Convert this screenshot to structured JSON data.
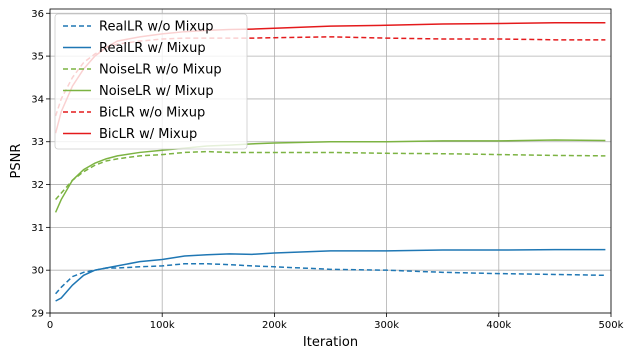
{
  "chart_data": {
    "type": "line",
    "title": "",
    "xlabel": "Iteration",
    "ylabel": "PSNR",
    "xlim": [
      0,
      500000
    ],
    "ylim": [
      29,
      36.1
    ],
    "grid": true,
    "legend_position": "top-left",
    "x_ticks": [
      0,
      100000,
      200000,
      300000,
      400000,
      500000
    ],
    "x_tick_labels": [
      "0",
      "100k",
      "200k",
      "300k",
      "400k",
      "500k"
    ],
    "y_ticks": [
      29,
      30,
      31,
      32,
      33,
      34,
      35,
      36
    ],
    "y_tick_labels": [
      "29",
      "30",
      "31",
      "32",
      "33",
      "34",
      "35",
      "36"
    ],
    "series": [
      {
        "name": "RealLR w/o Mixup",
        "color": "#1f77b4",
        "dash": "dashed",
        "x": [
          5000,
          10000,
          20000,
          30000,
          40000,
          50000,
          60000,
          80000,
          100000,
          120000,
          140000,
          160000,
          180000,
          200000,
          250000,
          300000,
          350000,
          400000,
          450000,
          495000
        ],
        "y": [
          29.45,
          29.6,
          29.85,
          29.95,
          30.0,
          30.05,
          30.05,
          30.08,
          30.1,
          30.15,
          30.15,
          30.13,
          30.1,
          30.08,
          30.02,
          30.0,
          29.95,
          29.92,
          29.9,
          29.88
        ]
      },
      {
        "name": "RealLR w/ Mixup",
        "color": "#1f77b4",
        "dash": "solid",
        "x": [
          5000,
          10000,
          20000,
          30000,
          40000,
          50000,
          60000,
          80000,
          100000,
          120000,
          140000,
          160000,
          180000,
          200000,
          250000,
          300000,
          350000,
          400000,
          450000,
          495000
        ],
        "y": [
          29.28,
          29.35,
          29.65,
          29.88,
          30.0,
          30.05,
          30.1,
          30.2,
          30.25,
          30.33,
          30.36,
          30.38,
          30.37,
          30.4,
          30.45,
          30.45,
          30.47,
          30.47,
          30.48,
          30.48
        ]
      },
      {
        "name": "NoiseLR w/o Mixup",
        "color": "#7cb342",
        "dash": "dashed",
        "x": [
          5000,
          10000,
          20000,
          30000,
          40000,
          50000,
          60000,
          80000,
          100000,
          120000,
          140000,
          160000,
          180000,
          200000,
          250000,
          300000,
          350000,
          400000,
          450000,
          495000
        ],
        "y": [
          31.65,
          31.8,
          32.1,
          32.3,
          32.45,
          32.55,
          32.6,
          32.67,
          32.7,
          32.75,
          32.77,
          32.75,
          32.75,
          32.75,
          32.75,
          32.73,
          32.72,
          32.7,
          32.68,
          32.67
        ]
      },
      {
        "name": "NoiseLR w/ Mixup",
        "color": "#7cb342",
        "dash": "solid",
        "x": [
          5000,
          10000,
          20000,
          30000,
          40000,
          50000,
          60000,
          80000,
          100000,
          120000,
          140000,
          160000,
          180000,
          200000,
          250000,
          300000,
          350000,
          400000,
          450000,
          495000
        ],
        "y": [
          31.35,
          31.65,
          32.1,
          32.35,
          32.5,
          32.6,
          32.67,
          32.75,
          32.8,
          32.85,
          32.9,
          32.92,
          32.95,
          32.97,
          33.0,
          33.0,
          33.02,
          33.02,
          33.04,
          33.03
        ]
      },
      {
        "name": "BicLR w/o Mixup",
        "color": "#e41a1c",
        "dash": "dashed",
        "x": [
          5000,
          10000,
          20000,
          30000,
          40000,
          50000,
          60000,
          80000,
          100000,
          120000,
          140000,
          160000,
          180000,
          200000,
          250000,
          300000,
          350000,
          400000,
          450000,
          495000
        ],
        "y": [
          33.6,
          34.0,
          34.5,
          34.85,
          35.05,
          35.2,
          35.28,
          35.35,
          35.4,
          35.42,
          35.42,
          35.42,
          35.42,
          35.43,
          35.45,
          35.42,
          35.4,
          35.4,
          35.38,
          35.38
        ]
      },
      {
        "name": "BicLR w/ Mixup",
        "color": "#e41a1c",
        "dash": "solid",
        "x": [
          5000,
          10000,
          20000,
          30000,
          40000,
          50000,
          60000,
          80000,
          100000,
          120000,
          140000,
          160000,
          180000,
          200000,
          250000,
          300000,
          350000,
          400000,
          450000,
          495000
        ],
        "y": [
          33.2,
          33.7,
          34.3,
          34.7,
          35.0,
          35.2,
          35.35,
          35.45,
          35.52,
          35.57,
          35.6,
          35.62,
          35.63,
          35.65,
          35.7,
          35.72,
          35.75,
          35.76,
          35.78,
          35.78
        ]
      }
    ]
  }
}
